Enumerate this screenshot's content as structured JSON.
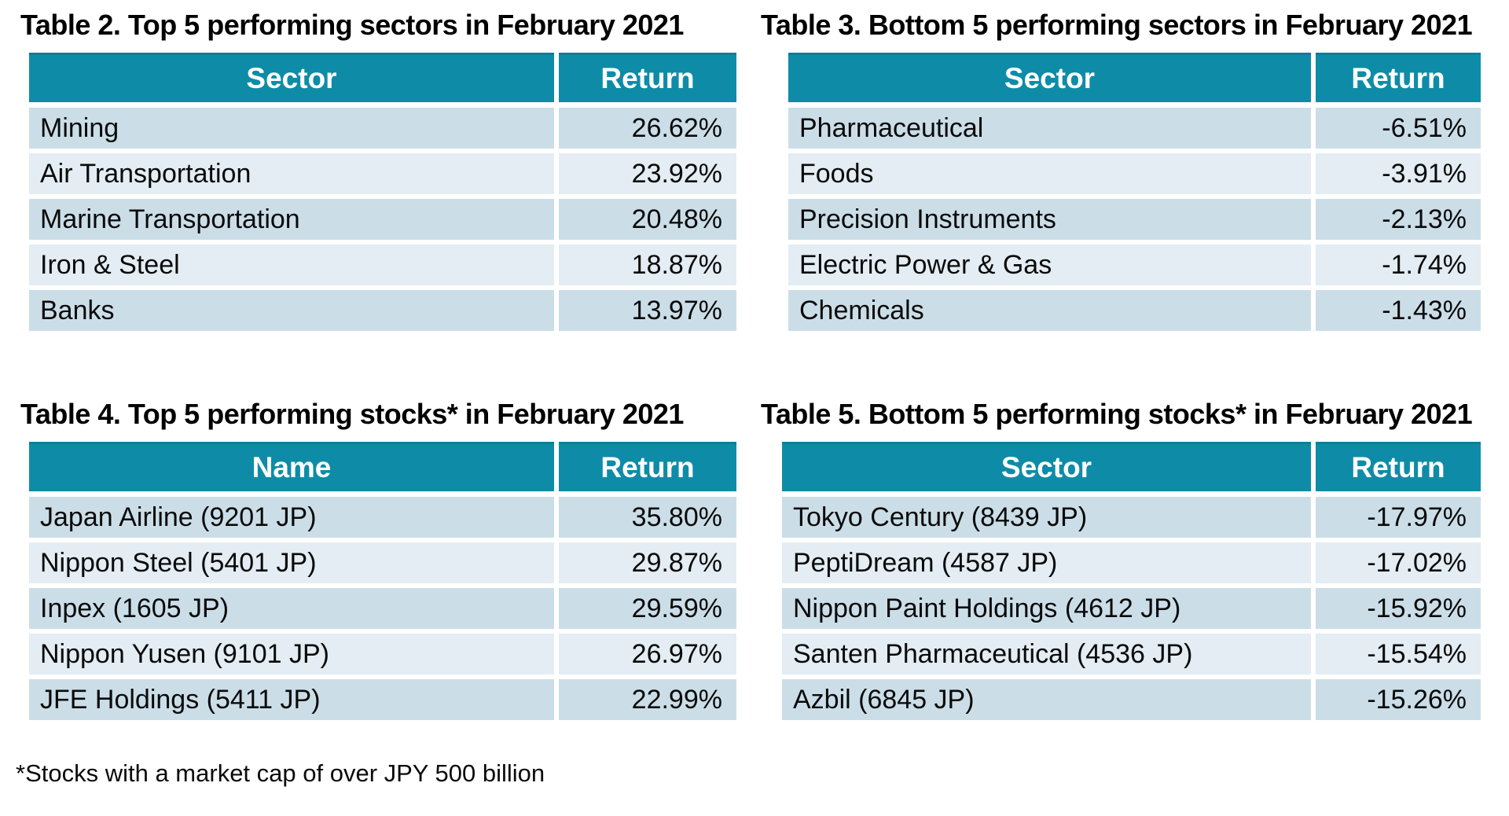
{
  "colors": {
    "header_bg": "#0E8CA7",
    "header_top_edge": "#0B7E98",
    "row_dark": "#CBDEE8",
    "row_light": "#E3EDF3",
    "header_text": "#FFFFFF",
    "body_text": "#0A0A0A"
  },
  "tables": [
    {
      "title": "Table 2. Top 5 performing sectors in February 2021",
      "columns": [
        "Sector",
        "Return"
      ],
      "rows": [
        [
          "Mining",
          "26.62%"
        ],
        [
          "Air Transportation",
          "23.92%"
        ],
        [
          "Marine Transportation",
          "20.48%"
        ],
        [
          "Iron & Steel",
          "18.87%"
        ],
        [
          "Banks",
          "13.97%"
        ]
      ]
    },
    {
      "title": "Table 3. Bottom 5 performing sectors in February 2021",
      "columns": [
        "Sector",
        "Return"
      ],
      "rows": [
        [
          "Pharmaceutical",
          "-6.51%"
        ],
        [
          "Foods",
          "-3.91%"
        ],
        [
          "Precision Instruments",
          "-2.13%"
        ],
        [
          "Electric Power & Gas",
          "-1.74%"
        ],
        [
          "Chemicals",
          "-1.43%"
        ]
      ]
    },
    {
      "title": "Table 4. Top 5 performing stocks* in February 2021",
      "columns": [
        "Name",
        "Return"
      ],
      "rows": [
        [
          "Japan Airline (9201 JP)",
          "35.80%"
        ],
        [
          "Nippon Steel (5401 JP)",
          "29.87%"
        ],
        [
          "Inpex (1605 JP)",
          "29.59%"
        ],
        [
          "Nippon Yusen (9101 JP)",
          "26.97%"
        ],
        [
          "JFE Holdings (5411 JP)",
          "22.99%"
        ]
      ]
    },
    {
      "title": "Table 5. Bottom 5 performing stocks* in February 2021",
      "columns": [
        "Sector",
        "Return"
      ],
      "rows": [
        [
          "Tokyo Century (8439 JP)",
          "-17.97%"
        ],
        [
          "PeptiDream (4587 JP)",
          "-17.02%"
        ],
        [
          "Nippon Paint Holdings (4612 JP)",
          "-15.92%"
        ],
        [
          "Santen Pharmaceutical (4536 JP)",
          "-15.54%"
        ],
        [
          "Azbil (6845 JP)",
          "-15.26%"
        ]
      ]
    }
  ],
  "footnote": "*Stocks with a market cap of over JPY 500 billion"
}
